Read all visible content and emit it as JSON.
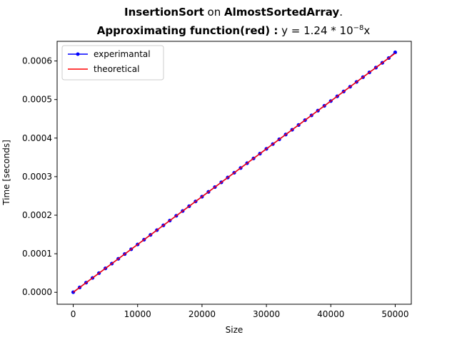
{
  "chart_data": {
    "type": "line",
    "title_parts": {
      "algo": "InsertionSort",
      "on": " on ",
      "dataset": "AlmostSortedArray",
      "period": ".",
      "approx_label": "Approximating function(red) :",
      "formula_prefix": " y = 1.24 * 10",
      "formula_exp": "−8",
      "formula_suffix": "x"
    },
    "xlabel": "Size",
    "ylabel": "Time [seconds]",
    "xlim": [
      -2500,
      52500
    ],
    "ylim": [
      -3.1e-05,
      0.000651
    ],
    "xticks": [
      0,
      10000,
      20000,
      30000,
      40000,
      50000
    ],
    "xtick_labels": [
      "0",
      "10000",
      "20000",
      "30000",
      "40000",
      "50000"
    ],
    "yticks": [
      0,
      0.0001,
      0.0002,
      0.0003,
      0.0004,
      0.0005,
      0.0006
    ],
    "ytick_labels": [
      "0.0000",
      "0.0001",
      "0.0002",
      "0.0003",
      "0.0004",
      "0.0005",
      "0.0006"
    ],
    "legend_position": "top-left",
    "series": [
      {
        "name": "experimantal",
        "color": "#0000ff",
        "marker": "circle",
        "x": [
          0,
          1000,
          2000,
          3000,
          4000,
          5000,
          6000,
          7000,
          8000,
          9000,
          10000,
          11000,
          12000,
          13000,
          14000,
          15000,
          16000,
          17000,
          18000,
          19000,
          20000,
          21000,
          22000,
          23000,
          24000,
          25000,
          26000,
          27000,
          28000,
          29000,
          30000,
          31000,
          32000,
          33000,
          34000,
          35000,
          36000,
          37000,
          38000,
          39000,
          40000,
          41000,
          42000,
          43000,
          44000,
          45000,
          46000,
          47000,
          48000,
          49000,
          50000
        ],
        "y": [
          3e-07,
          1.26e-05,
          2.5e-05,
          3.73e-05,
          4.97e-05,
          6.21e-05,
          7.45e-05,
          8.69e-05,
          9.93e-05,
          0.0001117,
          0.0001241,
          0.0001365,
          0.0001489,
          0.0001613,
          0.0001737,
          0.0001861,
          0.0001985,
          0.0002109,
          0.0002233,
          0.0002357,
          0.0002481,
          0.0002605,
          0.0002729,
          0.0002853,
          0.0002977,
          0.0003101,
          0.0003225,
          0.0003349,
          0.0003473,
          0.0003597,
          0.0003721,
          0.0003845,
          0.0003969,
          0.0004093,
          0.0004217,
          0.0004341,
          0.0004465,
          0.0004589,
          0.0004713,
          0.0004837,
          0.0004961,
          0.0005085,
          0.0005209,
          0.0005333,
          0.0005457,
          0.0005581,
          0.0005705,
          0.0005829,
          0.0005953,
          0.0006077,
          0.0006225
        ]
      },
      {
        "name": "theoretical",
        "color": "#ff0000",
        "marker": "none",
        "x": [
          0,
          50000
        ],
        "y": [
          0,
          0.00062
        ]
      }
    ]
  }
}
